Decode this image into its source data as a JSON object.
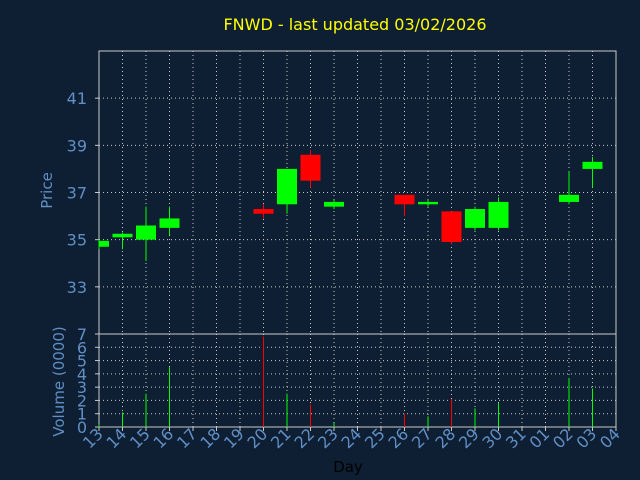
{
  "chart_data": {
    "type": "candlestick",
    "title": "FNWD - last updated 03/02/2026",
    "xlabel": "Day",
    "ylabel_price": "Price",
    "ylabel_volume": "Volume (0000)",
    "x_tick_labels": [
      "13",
      "14",
      "15",
      "16",
      "17",
      "18",
      "19",
      "20",
      "21",
      "22",
      "23",
      "24",
      "25",
      "26",
      "27",
      "28",
      "29",
      "30",
      "31",
      "01",
      "02",
      "03",
      "04"
    ],
    "price_ticks": [
      33,
      35,
      37,
      39,
      41
    ],
    "price_ylim": [
      31,
      43
    ],
    "volume_ticks": [
      0,
      1,
      2,
      3,
      4,
      5,
      6,
      7
    ],
    "volume_ylim": [
      0,
      7
    ],
    "grid": true,
    "colors": {
      "up": "#00ff00",
      "down": "#ff0000",
      "title": "#ffff00",
      "axis_text": "#5f8fc5",
      "background": "#0f1f33"
    },
    "candles": [
      {
        "day": "13",
        "open": 34.7,
        "high": 35.0,
        "low": 34.6,
        "close": 34.95,
        "volume": 0.2
      },
      {
        "day": "14",
        "open": 35.1,
        "high": 35.3,
        "low": 34.6,
        "close": 35.25,
        "volume": 1.1
      },
      {
        "day": "15",
        "open": 35.0,
        "high": 36.4,
        "low": 34.1,
        "close": 35.6,
        "volume": 2.5
      },
      {
        "day": "16",
        "open": 35.5,
        "high": 36.4,
        "low": 35.2,
        "close": 35.9,
        "volume": 4.5
      },
      {
        "day": "20",
        "open": 36.3,
        "high": 36.5,
        "low": 35.9,
        "close": 36.1,
        "volume": 6.8
      },
      {
        "day": "21",
        "open": 36.5,
        "high": 38.0,
        "low": 36.1,
        "close": 38.0,
        "volume": 2.5
      },
      {
        "day": "22",
        "open": 38.6,
        "high": 38.8,
        "low": 37.2,
        "close": 37.5,
        "volume": 1.7
      },
      {
        "day": "23",
        "open": 36.4,
        "high": 36.7,
        "low": 36.3,
        "close": 36.6,
        "volume": 0.3
      },
      {
        "day": "26",
        "open": 36.9,
        "high": 36.9,
        "low": 36.0,
        "close": 36.5,
        "volume": 1.0
      },
      {
        "day": "27",
        "open": 36.5,
        "high": 36.7,
        "low": 36.4,
        "close": 36.6,
        "volume": 0.8
      },
      {
        "day": "28",
        "open": 36.2,
        "high": 36.2,
        "low": 34.8,
        "close": 34.9,
        "volume": 2.1
      },
      {
        "day": "29",
        "open": 35.5,
        "high": 36.4,
        "low": 35.4,
        "close": 36.3,
        "volume": 1.4
      },
      {
        "day": "30",
        "open": 35.5,
        "high": 36.8,
        "low": 35.4,
        "close": 36.6,
        "volume": 1.8
      },
      {
        "day": "02",
        "open": 36.6,
        "high": 37.9,
        "low": 36.5,
        "close": 36.9,
        "volume": 3.7
      },
      {
        "day": "03",
        "open": 38.0,
        "high": 38.5,
        "low": 37.2,
        "close": 38.3,
        "volume": 2.9
      }
    ]
  }
}
